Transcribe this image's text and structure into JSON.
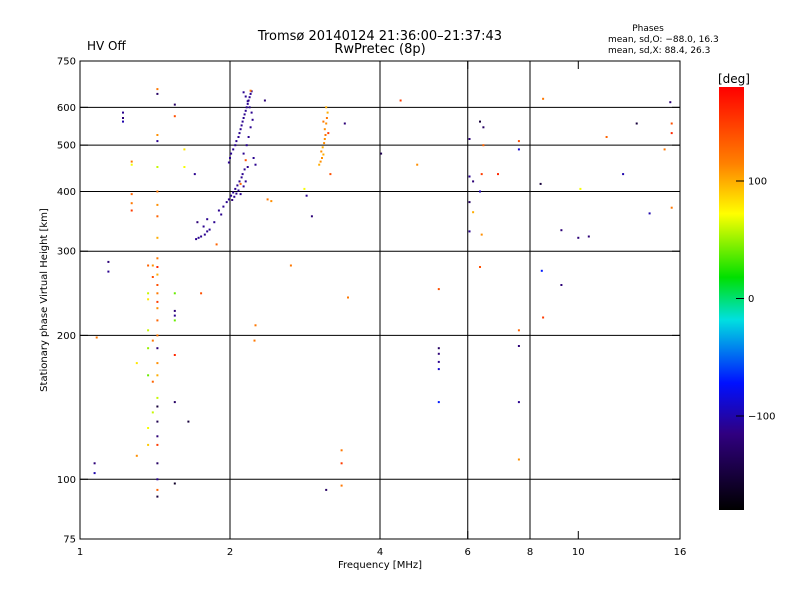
{
  "status": {
    "hv_label": "HV Off",
    "hv_color": "#cc0000"
  },
  "chart_data": {
    "type": "scatter",
    "title": "Tromsø 20140124 21:36:00–21:37:43",
    "subtitle": "RwPretec (8p)",
    "stats": {
      "heading": "Phases",
      "o_line": "mean, sd,O: −88.0, 16.3",
      "x_line": "mean, sd,X:  88.4, 26.3"
    },
    "xlabel": "Frequency [MHz]",
    "ylabel": "Stationary phase Virtual Height [km]",
    "xscale": "log",
    "yscale": "log",
    "xlim": [
      1,
      16
    ],
    "ylim": [
      75,
      750
    ],
    "xticks": [
      1,
      2,
      4,
      6,
      8,
      10,
      16
    ],
    "xtick_labels": [
      "1",
      "2",
      "4",
      "6",
      "8",
      "10",
      "16"
    ],
    "yticks": [
      75,
      100,
      200,
      300,
      400,
      500,
      600,
      750
    ],
    "ytick_labels": [
      "75",
      "100",
      "200",
      "300",
      "400",
      "500",
      "600",
      "750"
    ],
    "grid_x": [
      2,
      4,
      6,
      8
    ],
    "grid_y": [
      100,
      200,
      300,
      400,
      500,
      600
    ],
    "colorbar": {
      "label": "[deg]",
      "range": [
        -180,
        180
      ],
      "ticks": [
        100,
        0,
        -100
      ],
      "tick_labels": [
        "100",
        "0",
        "−100"
      ]
    },
    "points": [
      {
        "f": 1.07,
        "h": 108,
        "p": -120
      },
      {
        "f": 1.07,
        "h": 103,
        "p": -100
      },
      {
        "f": 1.08,
        "h": 198,
        "p": 120
      },
      {
        "f": 1.14,
        "h": 285,
        "p": -120
      },
      {
        "f": 1.14,
        "h": 272,
        "p": -110
      },
      {
        "f": 1.22,
        "h": 585,
        "p": -110
      },
      {
        "f": 1.22,
        "h": 570,
        "p": -120
      },
      {
        "f": 1.22,
        "h": 560,
        "p": -100
      },
      {
        "f": 1.27,
        "h": 462,
        "p": 120
      },
      {
        "f": 1.27,
        "h": 455,
        "p": 70
      },
      {
        "f": 1.27,
        "h": 395,
        "p": 130
      },
      {
        "f": 1.27,
        "h": 378,
        "p": 120
      },
      {
        "f": 1.27,
        "h": 365,
        "p": 150
      },
      {
        "f": 1.3,
        "h": 112,
        "p": 110
      },
      {
        "f": 1.3,
        "h": 175,
        "p": 80
      },
      {
        "f": 1.37,
        "h": 280,
        "p": 130
      },
      {
        "f": 1.37,
        "h": 245,
        "p": 60
      },
      {
        "f": 1.37,
        "h": 238,
        "p": 80
      },
      {
        "f": 1.37,
        "h": 205,
        "p": 60
      },
      {
        "f": 1.37,
        "h": 188,
        "p": 50
      },
      {
        "f": 1.37,
        "h": 165,
        "p": 40
      },
      {
        "f": 1.37,
        "h": 128,
        "p": 70
      },
      {
        "f": 1.37,
        "h": 118,
        "p": 90
      },
      {
        "f": 1.4,
        "h": 280,
        "p": 110
      },
      {
        "f": 1.4,
        "h": 265,
        "p": 140
      },
      {
        "f": 1.4,
        "h": 195,
        "p": 120
      },
      {
        "f": 1.4,
        "h": 160,
        "p": 130
      },
      {
        "f": 1.4,
        "h": 138,
        "p": 60
      },
      {
        "f": 1.43,
        "h": 640,
        "p": -130
      },
      {
        "f": 1.43,
        "h": 655,
        "p": 120
      },
      {
        "f": 1.43,
        "h": 525,
        "p": 110
      },
      {
        "f": 1.43,
        "h": 510,
        "p": -110
      },
      {
        "f": 1.43,
        "h": 450,
        "p": 60
      },
      {
        "f": 1.43,
        "h": 400,
        "p": 120
      },
      {
        "f": 1.43,
        "h": 375,
        "p": 110
      },
      {
        "f": 1.43,
        "h": 355,
        "p": 130
      },
      {
        "f": 1.43,
        "h": 320,
        "p": 100
      },
      {
        "f": 1.43,
        "h": 290,
        "p": 120
      },
      {
        "f": 1.43,
        "h": 278,
        "p": 160
      },
      {
        "f": 1.43,
        "h": 268,
        "p": 100
      },
      {
        "f": 1.43,
        "h": 255,
        "p": 140
      },
      {
        "f": 1.43,
        "h": 245,
        "p": 120
      },
      {
        "f": 1.43,
        "h": 235,
        "p": 150
      },
      {
        "f": 1.43,
        "h": 228,
        "p": 110
      },
      {
        "f": 1.43,
        "h": 215,
        "p": 130
      },
      {
        "f": 1.43,
        "h": 200,
        "p": 120
      },
      {
        "f": 1.43,
        "h": 188,
        "p": -120
      },
      {
        "f": 1.43,
        "h": 175,
        "p": 110
      },
      {
        "f": 1.43,
        "h": 165,
        "p": 100
      },
      {
        "f": 1.43,
        "h": 148,
        "p": 60
      },
      {
        "f": 1.43,
        "h": 142,
        "p": -150
      },
      {
        "f": 1.43,
        "h": 132,
        "p": -140
      },
      {
        "f": 1.43,
        "h": 123,
        "p": -120
      },
      {
        "f": 1.43,
        "h": 118,
        "p": 150
      },
      {
        "f": 1.43,
        "h": 108,
        "p": -130
      },
      {
        "f": 1.43,
        "h": 100,
        "p": -110
      },
      {
        "f": 1.43,
        "h": 95,
        "p": 130
      },
      {
        "f": 1.43,
        "h": 92,
        "p": -150
      },
      {
        "f": 1.55,
        "h": 608,
        "p": -130
      },
      {
        "f": 1.55,
        "h": 575,
        "p": 140
      },
      {
        "f": 1.55,
        "h": 245,
        "p": 40
      },
      {
        "f": 1.55,
        "h": 225,
        "p": -120
      },
      {
        "f": 1.55,
        "h": 220,
        "p": -110
      },
      {
        "f": 1.55,
        "h": 215,
        "p": 40
      },
      {
        "f": 1.55,
        "h": 182,
        "p": 160
      },
      {
        "f": 1.55,
        "h": 145,
        "p": -130
      },
      {
        "f": 1.55,
        "h": 98,
        "p": -160
      },
      {
        "f": 1.62,
        "h": 490,
        "p": 80
      },
      {
        "f": 1.62,
        "h": 450,
        "p": 70
      },
      {
        "f": 1.65,
        "h": 132,
        "p": -150
      },
      {
        "f": 1.7,
        "h": 435,
        "p": -110
      },
      {
        "f": 1.75,
        "h": 245,
        "p": 140
      },
      {
        "f": 1.71,
        "h": 318,
        "p": -110
      },
      {
        "f": 1.73,
        "h": 320,
        "p": -110
      },
      {
        "f": 1.75,
        "h": 322,
        "p": -110
      },
      {
        "f": 1.78,
        "h": 325,
        "p": -110
      },
      {
        "f": 1.8,
        "h": 330,
        "p": -110
      },
      {
        "f": 1.82,
        "h": 333,
        "p": -110
      },
      {
        "f": 1.72,
        "h": 345,
        "p": -120
      },
      {
        "f": 1.77,
        "h": 338,
        "p": -110
      },
      {
        "f": 1.8,
        "h": 350,
        "p": -110
      },
      {
        "f": 1.86,
        "h": 345,
        "p": -110
      },
      {
        "f": 1.9,
        "h": 365,
        "p": -110
      },
      {
        "f": 1.88,
        "h": 310,
        "p": 130
      },
      {
        "f": 1.92,
        "h": 358,
        "p": -110
      },
      {
        "f": 1.94,
        "h": 372,
        "p": -110
      },
      {
        "f": 1.97,
        "h": 380,
        "p": -110
      },
      {
        "f": 1.99,
        "h": 385,
        "p": -110
      },
      {
        "f": 2.01,
        "h": 392,
        "p": -110
      },
      {
        "f": 2.03,
        "h": 398,
        "p": -110
      },
      {
        "f": 2.05,
        "h": 405,
        "p": -110
      },
      {
        "f": 2.07,
        "h": 412,
        "p": -110
      },
      {
        "f": 2.09,
        "h": 420,
        "p": -110
      },
      {
        "f": 2.11,
        "h": 428,
        "p": -110
      },
      {
        "f": 2.02,
        "h": 384,
        "p": -120
      },
      {
        "f": 2.04,
        "h": 390,
        "p": -110
      },
      {
        "f": 2.06,
        "h": 396,
        "p": -110
      },
      {
        "f": 2.08,
        "h": 402,
        "p": -110
      },
      {
        "f": 2.1,
        "h": 395,
        "p": -110
      },
      {
        "f": 2.13,
        "h": 410,
        "p": -110
      },
      {
        "f": 2.15,
        "h": 420,
        "p": -110
      },
      {
        "f": 2.12,
        "h": 435,
        "p": -110
      },
      {
        "f": 2.14,
        "h": 445,
        "p": -110
      },
      {
        "f": 2.17,
        "h": 450,
        "p": -110
      },
      {
        "f": 1.99,
        "h": 460,
        "p": -110
      },
      {
        "f": 2.0,
        "h": 470,
        "p": -110
      },
      {
        "f": 2.01,
        "h": 480,
        "p": -110
      },
      {
        "f": 2.03,
        "h": 490,
        "p": -110
      },
      {
        "f": 2.05,
        "h": 500,
        "p": -110
      },
      {
        "f": 2.06,
        "h": 510,
        "p": -110
      },
      {
        "f": 2.08,
        "h": 520,
        "p": -110
      },
      {
        "f": 2.09,
        "h": 530,
        "p": -110
      },
      {
        "f": 2.1,
        "h": 540,
        "p": -110
      },
      {
        "f": 2.11,
        "h": 550,
        "p": -110
      },
      {
        "f": 2.12,
        "h": 560,
        "p": -110
      },
      {
        "f": 2.13,
        "h": 570,
        "p": -110
      },
      {
        "f": 2.14,
        "h": 580,
        "p": -110
      },
      {
        "f": 2.15,
        "h": 590,
        "p": -110
      },
      {
        "f": 2.16,
        "h": 600,
        "p": -110
      },
      {
        "f": 2.17,
        "h": 610,
        "p": -110
      },
      {
        "f": 2.18,
        "h": 620,
        "p": -110
      },
      {
        "f": 2.19,
        "h": 630,
        "p": -110
      },
      {
        "f": 2.2,
        "h": 640,
        "p": -110
      },
      {
        "f": 2.21,
        "h": 648,
        "p": -110
      },
      {
        "f": 2.13,
        "h": 645,
        "p": -110
      },
      {
        "f": 2.15,
        "h": 632,
        "p": -110
      },
      {
        "f": 2.17,
        "h": 618,
        "p": -110
      },
      {
        "f": 2.19,
        "h": 600,
        "p": -110
      },
      {
        "f": 2.21,
        "h": 585,
        "p": -110
      },
      {
        "f": 2.22,
        "h": 565,
        "p": -110
      },
      {
        "f": 2.2,
        "h": 545,
        "p": -110
      },
      {
        "f": 2.18,
        "h": 520,
        "p": -110
      },
      {
        "f": 2.16,
        "h": 500,
        "p": -110
      },
      {
        "f": 2.13,
        "h": 480,
        "p": -110
      },
      {
        "f": 2.23,
        "h": 470,
        "p": -110
      },
      {
        "f": 2.25,
        "h": 455,
        "p": -110
      },
      {
        "f": 2.15,
        "h": 465,
        "p": 140
      },
      {
        "f": 2.1,
        "h": 415,
        "p": 130
      },
      {
        "f": 2.2,
        "h": 650,
        "p": 120
      },
      {
        "f": 2.24,
        "h": 195,
        "p": 120
      },
      {
        "f": 2.25,
        "h": 210,
        "p": 120
      },
      {
        "f": 2.35,
        "h": 620,
        "p": -120
      },
      {
        "f": 2.38,
        "h": 385,
        "p": 120
      },
      {
        "f": 2.42,
        "h": 382,
        "p": 110
      },
      {
        "f": 2.65,
        "h": 280,
        "p": 120
      },
      {
        "f": 2.82,
        "h": 405,
        "p": 70
      },
      {
        "f": 2.85,
        "h": 392,
        "p": -110
      },
      {
        "f": 2.92,
        "h": 355,
        "p": -120
      },
      {
        "f": 3.02,
        "h": 455,
        "p": 100
      },
      {
        "f": 3.04,
        "h": 462,
        "p": 110
      },
      {
        "f": 3.06,
        "h": 470,
        "p": 110
      },
      {
        "f": 3.08,
        "h": 478,
        "p": 100
      },
      {
        "f": 3.05,
        "h": 485,
        "p": 110
      },
      {
        "f": 3.07,
        "h": 495,
        "p": 100
      },
      {
        "f": 3.09,
        "h": 505,
        "p": 110
      },
      {
        "f": 3.1,
        "h": 515,
        "p": 110
      },
      {
        "f": 3.11,
        "h": 525,
        "p": 120
      },
      {
        "f": 3.1,
        "h": 540,
        "p": 110
      },
      {
        "f": 3.12,
        "h": 555,
        "p": 110
      },
      {
        "f": 3.13,
        "h": 570,
        "p": 120
      },
      {
        "f": 3.14,
        "h": 585,
        "p": 100
      },
      {
        "f": 3.12,
        "h": 600,
        "p": 100
      },
      {
        "f": 3.08,
        "h": 560,
        "p": 120
      },
      {
        "f": 3.15,
        "h": 530,
        "p": 150
      },
      {
        "f": 3.18,
        "h": 435,
        "p": 140
      },
      {
        "f": 3.12,
        "h": 95,
        "p": -130
      },
      {
        "f": 3.35,
        "h": 115,
        "p": 120
      },
      {
        "f": 3.35,
        "h": 108,
        "p": 150
      },
      {
        "f": 3.35,
        "h": 97,
        "p": 120
      },
      {
        "f": 3.4,
        "h": 555,
        "p": -120
      },
      {
        "f": 3.45,
        "h": 240,
        "p": 120
      },
      {
        "f": 4.02,
        "h": 480,
        "p": -140
      },
      {
        "f": 4.4,
        "h": 620,
        "p": 150
      },
      {
        "f": 4.75,
        "h": 455,
        "p": 110
      },
      {
        "f": 5.25,
        "h": 250,
        "p": 140
      },
      {
        "f": 5.25,
        "h": 188,
        "p": -130
      },
      {
        "f": 5.25,
        "h": 183,
        "p": -120
      },
      {
        "f": 5.25,
        "h": 176,
        "p": -110
      },
      {
        "f": 5.25,
        "h": 170,
        "p": -90
      },
      {
        "f": 5.25,
        "h": 145,
        "p": -70
      },
      {
        "f": 6.05,
        "h": 515,
        "p": -120
      },
      {
        "f": 6.05,
        "h": 430,
        "p": -110
      },
      {
        "f": 6.05,
        "h": 380,
        "p": -130
      },
      {
        "f": 6.05,
        "h": 330,
        "p": -110
      },
      {
        "f": 6.15,
        "h": 420,
        "p": -120
      },
      {
        "f": 6.15,
        "h": 362,
        "p": 100
      },
      {
        "f": 6.35,
        "h": 560,
        "p": -150
      },
      {
        "f": 6.35,
        "h": 400,
        "p": -100
      },
      {
        "f": 6.35,
        "h": 278,
        "p": 140
      },
      {
        "f": 6.45,
        "h": 545,
        "p": -130
      },
      {
        "f": 6.4,
        "h": 435,
        "p": 150
      },
      {
        "f": 6.4,
        "h": 325,
        "p": 110
      },
      {
        "f": 6.45,
        "h": 500,
        "p": 130
      },
      {
        "f": 6.9,
        "h": 435,
        "p": 160
      },
      {
        "f": 7.6,
        "h": 510,
        "p": 140
      },
      {
        "f": 7.6,
        "h": 490,
        "p": -90
      },
      {
        "f": 7.6,
        "h": 205,
        "p": 130
      },
      {
        "f": 7.6,
        "h": 190,
        "p": -120
      },
      {
        "f": 7.6,
        "h": 145,
        "p": -110
      },
      {
        "f": 7.6,
        "h": 110,
        "p": 110
      },
      {
        "f": 8.4,
        "h": 415,
        "p": -150
      },
      {
        "f": 8.5,
        "h": 625,
        "p": 120
      },
      {
        "f": 8.45,
        "h": 273,
        "p": -70
      },
      {
        "f": 8.5,
        "h": 218,
        "p": 150
      },
      {
        "f": 9.25,
        "h": 332,
        "p": -120
      },
      {
        "f": 9.25,
        "h": 255,
        "p": -120
      },
      {
        "f": 10.0,
        "h": 320,
        "p": -120
      },
      {
        "f": 10.1,
        "h": 405,
        "p": 70
      },
      {
        "f": 10.5,
        "h": 322,
        "p": -120
      },
      {
        "f": 11.4,
        "h": 520,
        "p": 130
      },
      {
        "f": 12.3,
        "h": 435,
        "p": -100
      },
      {
        "f": 13.1,
        "h": 555,
        "p": -150
      },
      {
        "f": 13.9,
        "h": 360,
        "p": -100
      },
      {
        "f": 14.9,
        "h": 490,
        "p": 120
      },
      {
        "f": 15.3,
        "h": 615,
        "p": -120
      },
      {
        "f": 15.4,
        "h": 555,
        "p": 140
      },
      {
        "f": 15.4,
        "h": 530,
        "p": 160
      },
      {
        "f": 15.4,
        "h": 370,
        "p": 120
      }
    ]
  }
}
